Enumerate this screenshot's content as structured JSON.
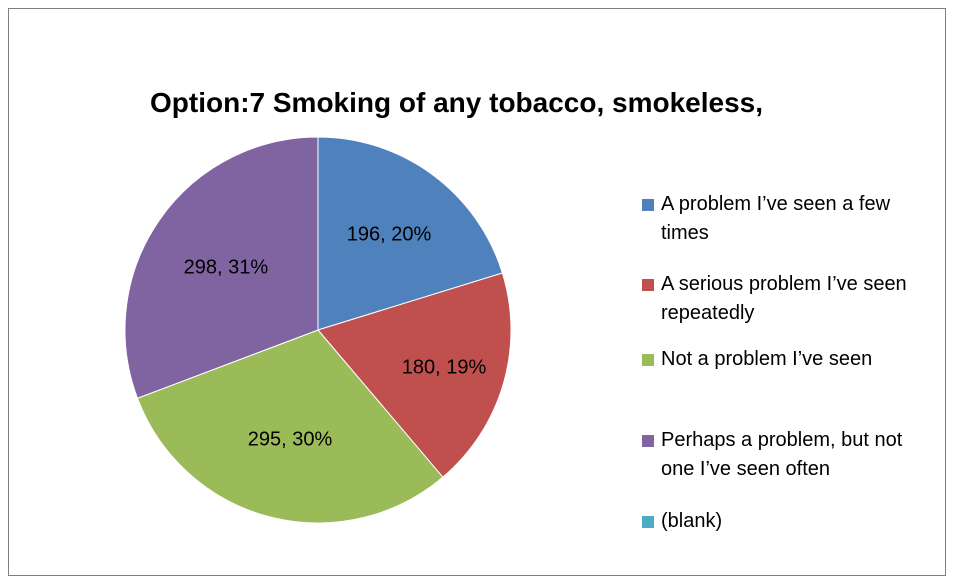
{
  "chart_data": {
    "type": "pie",
    "title": "Option:7 Smoking of any tobacco, smokeless,",
    "slices": [
      {
        "name": "A problem I’ve seen a few times",
        "value": 196,
        "percent": "20%",
        "label": "196, 20%",
        "color": "#4f81bd"
      },
      {
        "name": "A serious problem I’ve seen repeatedly",
        "value": 180,
        "percent": "19%",
        "label": "180, 19%",
        "color": "#c0504d"
      },
      {
        "name": "Not a problem I’ve seen",
        "value": 295,
        "percent": "30%",
        "label": "295, 30%",
        "color": "#9bbb59"
      },
      {
        "name": "Perhaps a problem, but not one I’ve seen often",
        "value": 298,
        "percent": "31%",
        "label": "298, 31%",
        "color": "#8064a2"
      },
      {
        "name": "(blank)",
        "value": 0,
        "percent": "",
        "label": "",
        "color": "#4bacc6"
      }
    ],
    "legend_position": "right"
  }
}
